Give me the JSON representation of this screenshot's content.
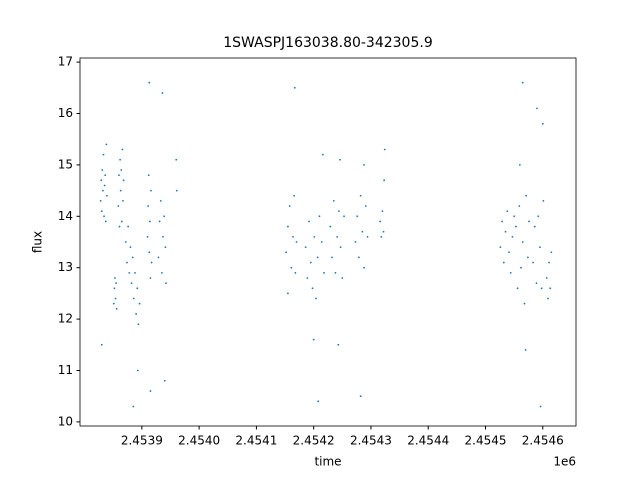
{
  "chart_data": {
    "type": "scatter",
    "title": "1SWASPJ163038.80-342305.9",
    "x_label": "time",
    "y_label": "flux",
    "x_offset_label": "1e6",
    "color": "#1f77b4",
    "grid": false,
    "xlim": [
      2453792,
      2454658
    ],
    "ylim": [
      9.92,
      17.08
    ],
    "xticks": [
      {
        "value": 2453900,
        "label": "2.4539"
      },
      {
        "value": 2454000,
        "label": "2.4540"
      },
      {
        "value": 2454100,
        "label": "2.4541"
      },
      {
        "value": 2454200,
        "label": "2.4542"
      },
      {
        "value": 2454300,
        "label": "2.4543"
      },
      {
        "value": 2454400,
        "label": "2.4544"
      },
      {
        "value": 2454500,
        "label": "2.4545"
      },
      {
        "value": 2454600,
        "label": "2.4546"
      }
    ],
    "yticks": [
      10,
      11,
      12,
      13,
      14,
      15,
      16,
      17
    ],
    "x": [
      2453828,
      2453829,
      2453830,
      2453831,
      2453832,
      2453833,
      2453834,
      2453835,
      2453836,
      2453837,
      2453838,
      2453839,
      2453830,
      2453851,
      2453852,
      2453853,
      2453854,
      2453855,
      2453856,
      2453859,
      2453860,
      2453861,
      2453862,
      2453863,
      2453864,
      2453865,
      2453866,
      2453867,
      2453868,
      2453872,
      2453874,
      2453876,
      2453878,
      2453880,
      2453882,
      2453884,
      2453886,
      2453888,
      2453890,
      2453892,
      2453894,
      2453896,
      2453885,
      2453893,
      2453910,
      2453911,
      2453912,
      2453913,
      2453914,
      2453915,
      2453916,
      2453917,
      2453913,
      2453915,
      2453929,
      2453931,
      2453933,
      2453935,
      2453937,
      2453939,
      2453941,
      2453942,
      2453936,
      2453940,
      2453960,
      2453961,
      2454152,
      2454155,
      2454158,
      2454161,
      2454164,
      2454166,
      2454168,
      2454170,
      2454155,
      2454167,
      2454186,
      2454189,
      2454192,
      2454195,
      2454198,
      2454201,
      2454204,
      2454207,
      2454210,
      2454214,
      2454218,
      2454200,
      2454208,
      2454216,
      2454229,
      2454232,
      2454235,
      2454238,
      2454241,
      2454244,
      2454247,
      2454250,
      2454253,
      2454246,
      2454243,
      2454273,
      2454276,
      2454279,
      2454282,
      2454285,
      2454288,
      2454291,
      2454294,
      2454282,
      2454288,
      2454316,
      2454318,
      2454320,
      2454322,
      2454323,
      2454324,
      2454526,
      2454529,
      2454532,
      2454535,
      2454538,
      2454541,
      2454544,
      2454547,
      2454550,
      2454553,
      2454556,
      2454559,
      2454562,
      2454565,
      2454568,
      2454571,
      2454574,
      2454576,
      2454565,
      2454570,
      2454560,
      2454583,
      2454586,
      2454589,
      2454592,
      2454595,
      2454598,
      2454601,
      2454590,
      2454596,
      2454600,
      2454607,
      2454609,
      2454611,
      2454613,
      2454615
    ],
    "values": [
      14.3,
      14.7,
      14.1,
      14.9,
      14.5,
      15.2,
      14.0,
      14.6,
      14.8,
      13.9,
      15.4,
      14.4,
      11.5,
      12.3,
      12.6,
      12.8,
      12.4,
      12.7,
      12.2,
      14.2,
      14.8,
      13.8,
      15.1,
      14.5,
      14.9,
      13.9,
      15.3,
      14.3,
      14.7,
      13.5,
      13.1,
      13.8,
      12.9,
      13.4,
      12.7,
      13.2,
      12.4,
      12.9,
      12.1,
      12.6,
      11.9,
      12.3,
      10.3,
      11.0,
      13.6,
      14.2,
      14.8,
      13.3,
      13.9,
      12.8,
      14.5,
      13.1,
      16.6,
      10.6,
      13.2,
      13.9,
      14.3,
      12.9,
      13.6,
      14.0,
      13.4,
      12.7,
      16.4,
      10.8,
      15.1,
      14.5,
      13.3,
      13.8,
      14.2,
      13.0,
      13.6,
      14.4,
      12.9,
      13.5,
      12.5,
      16.5,
      13.4,
      12.8,
      13.9,
      13.1,
      12.6,
      13.6,
      12.4,
      13.2,
      14.0,
      13.5,
      12.9,
      11.6,
      10.4,
      15.2,
      13.8,
      13.2,
      14.3,
      12.9,
      13.6,
      14.1,
      13.4,
      12.8,
      14.0,
      15.1,
      11.5,
      13.5,
      14.0,
      13.2,
      14.4,
      13.7,
      13.0,
      14.2,
      13.6,
      10.5,
      15.0,
      13.9,
      13.6,
      14.1,
      13.7,
      14.7,
      15.3,
      13.4,
      13.9,
      13.1,
      13.7,
      14.1,
      13.3,
      12.9,
      13.6,
      14.0,
      13.8,
      12.6,
      14.2,
      13.0,
      13.5,
      12.3,
      14.4,
      13.2,
      13.9,
      16.6,
      11.4,
      15.0,
      13.1,
      13.8,
      12.7,
      14.0,
      13.4,
      12.6,
      14.3,
      16.1,
      10.3,
      15.8,
      12.8,
      12.4,
      13.1,
      12.6,
      13.3
    ]
  }
}
